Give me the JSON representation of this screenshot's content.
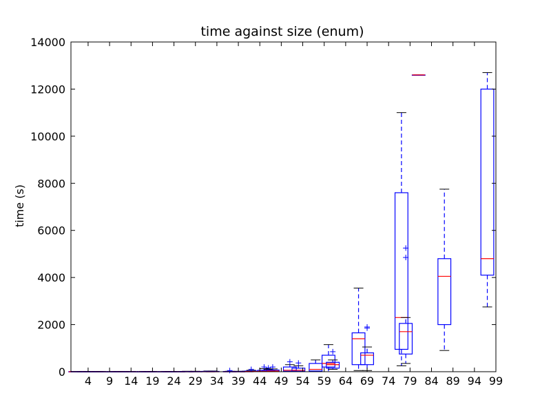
{
  "chart_data": {
    "type": "box",
    "title": "time against size (enum)",
    "xlabel": "",
    "ylabel": "time (s)",
    "xlim": [
      0,
      99
    ],
    "ylim": [
      0,
      14000
    ],
    "x_ticks": [
      4,
      9,
      14,
      19,
      24,
      29,
      34,
      39,
      44,
      49,
      54,
      59,
      64,
      69,
      74,
      79,
      84,
      89,
      94,
      99
    ],
    "y_ticks": [
      0,
      2000,
      4000,
      6000,
      8000,
      10000,
      12000,
      14000
    ],
    "colors": {
      "box": "#0000ff",
      "median": "#ff0000",
      "outlier": "#0000ff",
      "cap": "#000000"
    },
    "boxes": [
      {
        "x": 1,
        "wlo": 0,
        "q1": 0,
        "med": 0,
        "q3": 5,
        "whi": 10,
        "outliers": []
      },
      {
        "x": 3,
        "wlo": 0,
        "q1": 0,
        "med": 0,
        "q3": 5,
        "whi": 10,
        "outliers": []
      },
      {
        "x": 4,
        "wlo": 0,
        "q1": 0,
        "med": 0,
        "q3": 5,
        "whi": 10,
        "outliers": []
      },
      {
        "x": 5,
        "wlo": 0,
        "q1": 0,
        "med": 0,
        "q3": 5,
        "whi": 10,
        "outliers": []
      },
      {
        "x": 6,
        "wlo": 0,
        "q1": 0,
        "med": 0,
        "q3": 5,
        "whi": 10,
        "outliers": []
      },
      {
        "x": 7,
        "wlo": 0,
        "q1": 0,
        "med": 0,
        "q3": 5,
        "whi": 10,
        "outliers": []
      },
      {
        "x": 10,
        "wlo": 0,
        "q1": 0,
        "med": 0,
        "q3": 5,
        "whi": 10,
        "outliers": []
      },
      {
        "x": 11,
        "wlo": 0,
        "q1": 0,
        "med": 0,
        "q3": 5,
        "whi": 10,
        "outliers": []
      },
      {
        "x": 12,
        "wlo": 0,
        "q1": 0,
        "med": 0,
        "q3": 5,
        "whi": 10,
        "outliers": []
      },
      {
        "x": 14,
        "wlo": 0,
        "q1": 0,
        "med": 0,
        "q3": 5,
        "whi": 10,
        "outliers": []
      },
      {
        "x": 17,
        "wlo": 0,
        "q1": 0,
        "med": 0,
        "q3": 5,
        "whi": 10,
        "outliers": []
      },
      {
        "x": 18,
        "wlo": 0,
        "q1": 0,
        "med": 0,
        "q3": 5,
        "whi": 10,
        "outliers": []
      },
      {
        "x": 19,
        "wlo": 0,
        "q1": 0,
        "med": 0,
        "q3": 5,
        "whi": 10,
        "outliers": []
      },
      {
        "x": 22,
        "wlo": 0,
        "q1": 0,
        "med": 0,
        "q3": 5,
        "whi": 10,
        "outliers": []
      },
      {
        "x": 23,
        "wlo": 0,
        "q1": 0,
        "med": 0,
        "q3": 5,
        "whi": 10,
        "outliers": []
      },
      {
        "x": 25,
        "wlo": 0,
        "q1": 0,
        "med": 0,
        "q3": 5,
        "whi": 10,
        "outliers": []
      },
      {
        "x": 27,
        "wlo": 0,
        "q1": 0,
        "med": 0,
        "q3": 10,
        "whi": 20,
        "outliers": []
      },
      {
        "x": 29,
        "wlo": 0,
        "q1": 0,
        "med": 0,
        "q3": 10,
        "whi": 20,
        "outliers": []
      },
      {
        "x": 32,
        "wlo": 0,
        "q1": 0,
        "med": 0,
        "q3": 15,
        "whi": 30,
        "outliers": []
      },
      {
        "x": 33,
        "wlo": 0,
        "q1": 0,
        "med": 0,
        "q3": 15,
        "whi": 30,
        "outliers": []
      },
      {
        "x": 37,
        "wlo": 0,
        "q1": 0,
        "med": 0,
        "q3": 10,
        "whi": 20,
        "outliers": [
          50
        ]
      },
      {
        "x": 39,
        "wlo": 0,
        "q1": 0,
        "med": 0,
        "q3": 10,
        "whi": 20,
        "outliers": []
      },
      {
        "x": 41,
        "wlo": 0,
        "q1": 0,
        "med": 0,
        "q3": 15,
        "whi": 25,
        "outliers": []
      },
      {
        "x": 42,
        "wlo": 0,
        "q1": 5,
        "med": 10,
        "q3": 30,
        "whi": 60,
        "outliers": [
          100
        ]
      },
      {
        "x": 45,
        "wlo": 0,
        "q1": 5,
        "med": 20,
        "q3": 60,
        "whi": 130,
        "outliers": [
          200
        ]
      },
      {
        "x": 46,
        "wlo": 0,
        "q1": 5,
        "med": 20,
        "q3": 50,
        "whi": 100,
        "outliers": [
          160
        ]
      },
      {
        "x": 47,
        "wlo": 0,
        "q1": 5,
        "med": 30,
        "q3": 70,
        "whi": 120,
        "outliers": [
          200
        ]
      },
      {
        "x": 51,
        "wlo": 0,
        "q1": 20,
        "med": 60,
        "q3": 200,
        "whi": 300,
        "outliers": [
          420
        ]
      },
      {
        "x": 53,
        "wlo": 0,
        "q1": 20,
        "med": 60,
        "q3": 150,
        "whi": 250,
        "outliers": [
          370
        ]
      },
      {
        "x": 57,
        "wlo": 0,
        "q1": 30,
        "med": 100,
        "q3": 350,
        "whi": 500,
        "outliers": []
      },
      {
        "x": 60,
        "wlo": 0,
        "q1": 200,
        "med": 350,
        "q3": 700,
        "whi": 1150,
        "outliers": []
      },
      {
        "x": 61,
        "wlo": 100,
        "q1": 150,
        "med": 300,
        "q3": 400,
        "whi": 500,
        "outliers": [
          850
        ]
      },
      {
        "x": 67,
        "wlo": 50,
        "q1": 300,
        "med": 1400,
        "q3": 1650,
        "whi": 3550,
        "outliers": []
      },
      {
        "x": 69,
        "wlo": 50,
        "q1": 300,
        "med": 700,
        "q3": 800,
        "whi": 1050,
        "outliers": [
          1850,
          1900
        ]
      },
      {
        "x": 77,
        "wlo": 250,
        "q1": 950,
        "med": 2300,
        "q3": 7600,
        "whi": 11000,
        "outliers": []
      },
      {
        "x": 78,
        "wlo": 350,
        "q1": 750,
        "med": 1700,
        "q3": 2050,
        "whi": 2300,
        "outliers": [
          4850,
          5250
        ]
      },
      {
        "x": 81,
        "wlo": 12600,
        "q1": 12600,
        "med": 12600,
        "q3": 12600,
        "whi": 12600,
        "outliers": []
      },
      {
        "x": 87,
        "wlo": 900,
        "q1": 2000,
        "med": 4050,
        "q3": 4800,
        "whi": 7750,
        "outliers": []
      },
      {
        "x": 97,
        "wlo": 2750,
        "q1": 4100,
        "med": 4800,
        "q3": 12000,
        "whi": 12700,
        "outliers": []
      }
    ]
  }
}
